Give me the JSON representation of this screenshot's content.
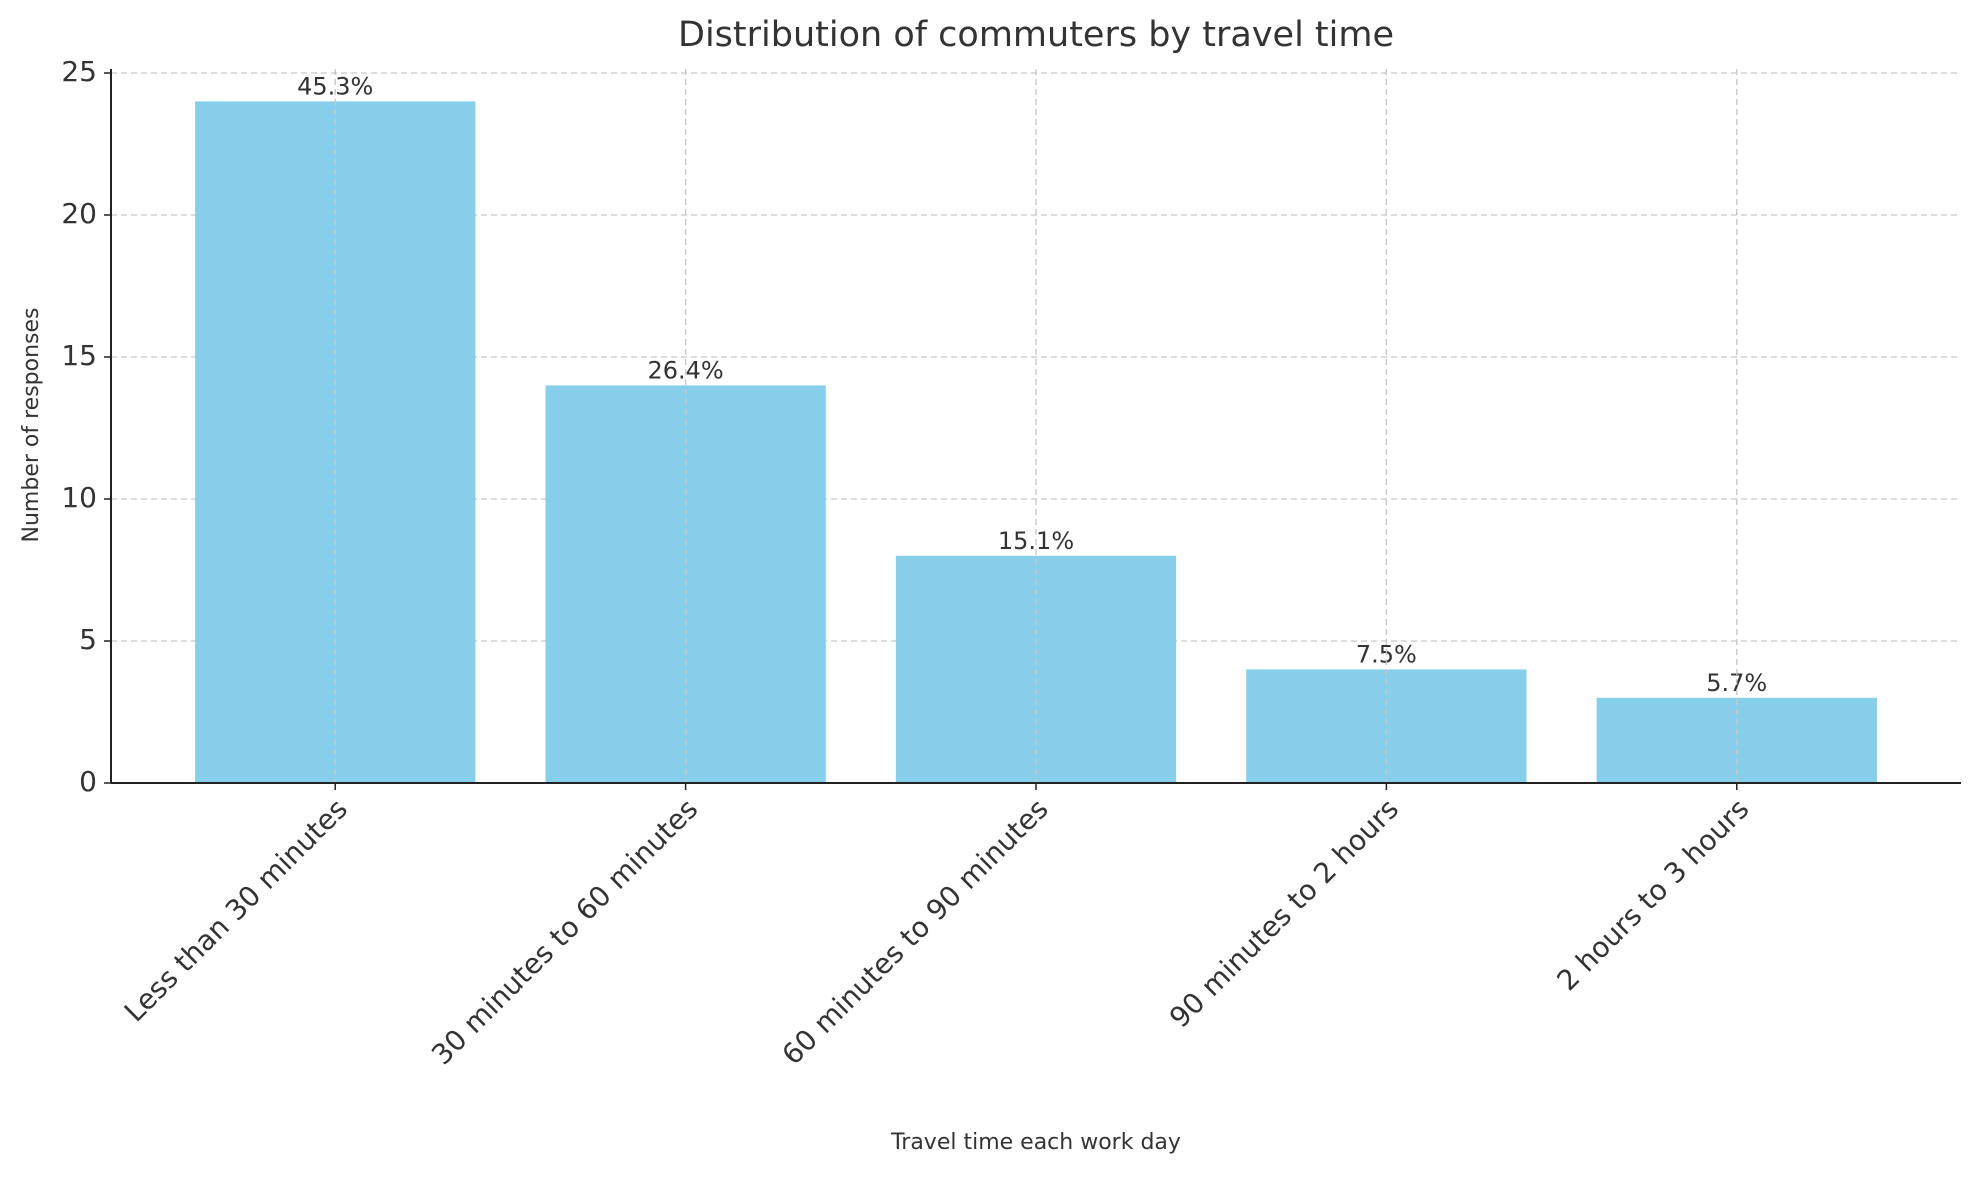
{
  "chart_data": {
    "type": "bar",
    "title": "Distribution of commuters by travel time",
    "x_label": "Travel time each work day",
    "y_label": "Number of responses",
    "categories": [
      "Less than 30 minutes",
      "30 minutes to 60 minutes",
      "60 minutes to 90 minutes",
      "90 minutes to 2 hours",
      "2 hours to 3 hours"
    ],
    "values": [
      24,
      14,
      8,
      4,
      3
    ],
    "bar_labels": [
      "45.3%",
      "26.4%",
      "15.1%",
      "7.5%",
      "5.7%"
    ],
    "color": "#87ceeb",
    "ylim": [
      0,
      25
    ],
    "yticks": [
      0,
      5,
      10,
      15,
      20,
      25
    ],
    "grid": true
  }
}
